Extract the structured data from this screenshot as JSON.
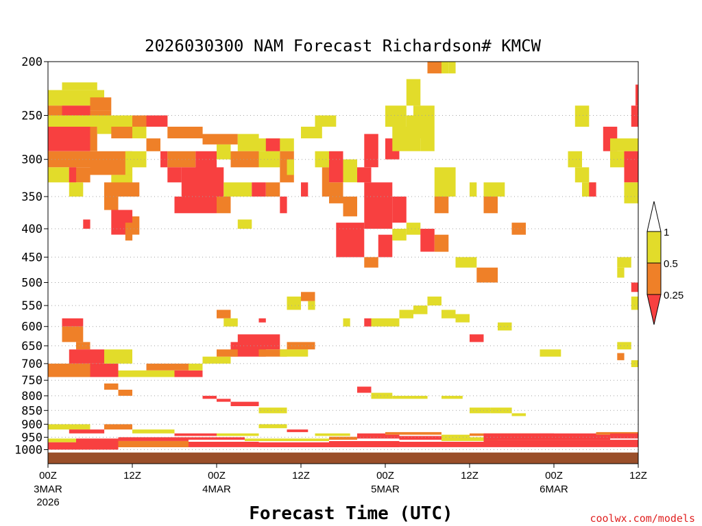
{
  "chart_data": {
    "type": "heatmap",
    "title": "2026030300 NAM Forecast Richardson# KMCW",
    "xlabel": "Forecast Time (UTC)",
    "ylabel": "",
    "credit": "coolwx.com/models",
    "x_range_hours": [
      0,
      84
    ],
    "y_range_hPa": [
      200,
      1060
    ],
    "y_scale": "log-pressure",
    "grid": "horizontal dotted",
    "y_ticks": [
      "200",
      "250",
      "300",
      "350",
      "400",
      "450",
      "500",
      "550",
      "600",
      "650",
      "700",
      "750",
      "800",
      "850",
      "900",
      "950",
      "1000"
    ],
    "y_tick_values": [
      200,
      250,
      300,
      350,
      400,
      450,
      500,
      550,
      600,
      650,
      700,
      750,
      800,
      850,
      900,
      950,
      1000
    ],
    "x_ticks": [
      {
        "hour": 0,
        "label": "00Z",
        "date": "3MAR",
        "year": "2026"
      },
      {
        "hour": 12,
        "label": "12Z",
        "date": "",
        "year": ""
      },
      {
        "hour": 24,
        "label": "00Z",
        "date": "4MAR",
        "year": ""
      },
      {
        "hour": 36,
        "label": "12Z",
        "date": "",
        "year": ""
      },
      {
        "hour": 48,
        "label": "00Z",
        "date": "5MAR",
        "year": ""
      },
      {
        "hour": 60,
        "label": "12Z",
        "date": "",
        "year": ""
      },
      {
        "hour": 72,
        "label": "00Z",
        "date": "6MAR",
        "year": ""
      },
      {
        "hour": 84,
        "label": "12Z",
        "date": "",
        "year": ""
      }
    ],
    "legend": {
      "placement": "right",
      "levels": [
        "1",
        "0.5",
        "0.25"
      ],
      "bins": [
        {
          "name": "0.5–1",
          "color": "#e2dc2a"
        },
        {
          "name": "0.25–0.5",
          "color": "#ef8028"
        },
        {
          "name": "<0.25",
          "color": "#f84040"
        }
      ]
    },
    "colors": {
      "c1": "#e2dc2a",
      "c2": "#ef8028",
      "c3": "#f84040",
      "ground": "#9a4f2a",
      "grid": "#a0a0a0"
    },
    "ground_level_hPa": 1012,
    "cells_format": "[hour_start, hour_end, p_top_hPa, p_bottom_hPa, category]",
    "cells": [
      [
        2,
        7,
        218,
        225,
        1
      ],
      [
        0,
        8,
        225,
        240,
        1
      ],
      [
        6,
        9,
        232,
        245,
        2
      ],
      [
        0,
        2,
        240,
        262,
        2
      ],
      [
        2,
        6,
        240,
        250,
        3
      ],
      [
        6,
        9,
        245,
        262,
        2
      ],
      [
        0,
        12,
        250,
        262,
        1
      ],
      [
        0,
        6,
        262,
        290,
        3
      ],
      [
        6,
        7,
        262,
        290,
        2
      ],
      [
        7,
        12,
        262,
        270,
        1
      ],
      [
        9,
        12,
        262,
        275,
        2
      ],
      [
        12,
        17,
        250,
        262,
        2
      ],
      [
        12,
        14,
        262,
        275,
        1
      ],
      [
        14,
        17,
        250,
        262,
        3
      ],
      [
        17,
        22,
        262,
        275,
        2
      ],
      [
        22,
        27,
        270,
        282,
        2
      ],
      [
        27,
        30,
        270,
        290,
        1
      ],
      [
        30,
        35,
        275,
        290,
        1
      ],
      [
        31,
        33,
        275,
        290,
        3
      ],
      [
        36,
        39,
        262,
        275,
        1
      ],
      [
        38,
        41,
        250,
        262,
        1
      ],
      [
        0,
        6,
        290,
        310,
        2
      ],
      [
        0,
        3,
        310,
        330,
        1
      ],
      [
        3,
        6,
        310,
        330,
        2
      ],
      [
        6,
        12,
        290,
        320,
        2
      ],
      [
        11,
        12,
        290,
        320,
        1
      ],
      [
        9,
        12,
        320,
        350,
        1
      ],
      [
        12,
        14,
        290,
        310,
        1
      ],
      [
        14,
        16,
        275,
        290,
        2
      ],
      [
        16,
        17,
        290,
        310,
        3
      ],
      [
        17,
        21,
        290,
        310,
        2
      ],
      [
        21,
        24,
        290,
        330,
        3
      ],
      [
        24,
        26,
        282,
        300,
        1
      ],
      [
        26,
        30,
        290,
        310,
        2
      ],
      [
        30,
        33,
        290,
        310,
        1
      ],
      [
        33,
        35,
        290,
        330,
        2
      ],
      [
        34,
        35,
        300,
        320,
        1
      ],
      [
        3,
        4,
        310,
        330,
        3
      ],
      [
        3,
        5,
        330,
        350,
        1
      ],
      [
        8,
        10,
        330,
        370,
        2
      ],
      [
        10,
        13,
        330,
        350,
        2
      ],
      [
        17,
        19,
        310,
        330,
        3
      ],
      [
        19,
        25,
        310,
        350,
        3
      ],
      [
        25,
        29,
        330,
        350,
        1
      ],
      [
        29,
        31,
        330,
        350,
        3
      ],
      [
        31,
        33,
        330,
        350,
        2
      ],
      [
        9,
        12,
        370,
        410,
        3
      ],
      [
        11,
        12,
        390,
        420,
        2
      ],
      [
        12,
        13,
        380,
        410,
        2
      ],
      [
        5,
        6,
        385,
        400,
        3
      ],
      [
        18,
        24,
        350,
        375,
        3
      ],
      [
        24,
        26,
        350,
        375,
        2
      ],
      [
        27,
        29,
        385,
        400,
        1
      ],
      [
        33,
        34,
        350,
        375,
        3
      ],
      [
        36,
        37,
        330,
        350,
        3
      ],
      [
        38,
        40,
        290,
        310,
        1
      ],
      [
        39,
        40,
        310,
        350,
        2
      ],
      [
        40,
        42,
        290,
        330,
        3
      ],
      [
        40,
        42,
        330,
        360,
        2
      ],
      [
        42,
        44,
        300,
        330,
        1
      ],
      [
        42,
        44,
        350,
        380,
        2
      ],
      [
        41,
        45,
        390,
        450,
        3
      ],
      [
        44,
        46,
        310,
        330,
        3
      ],
      [
        45,
        49,
        330,
        400,
        3
      ],
      [
        45,
        47,
        270,
        310,
        3
      ],
      [
        47,
        49,
        410,
        450,
        3
      ],
      [
        49,
        51,
        350,
        390,
        3
      ],
      [
        45,
        47,
        450,
        470,
        2
      ],
      [
        49,
        51,
        400,
        420,
        1
      ],
      [
        51,
        53,
        390,
        410,
        1
      ],
      [
        53,
        55,
        400,
        440,
        3
      ],
      [
        55,
        57,
        410,
        440,
        2
      ],
      [
        48,
        50,
        275,
        300,
        3
      ],
      [
        49,
        53,
        262,
        290,
        1
      ],
      [
        48,
        51,
        240,
        262,
        1
      ],
      [
        51,
        54,
        250,
        275,
        1
      ],
      [
        52,
        55,
        240,
        262,
        1
      ],
      [
        53,
        55,
        262,
        290,
        1
      ],
      [
        55,
        57,
        350,
        375,
        2
      ],
      [
        51,
        53,
        215,
        240,
        1
      ],
      [
        55,
        58,
        310,
        350,
        1
      ],
      [
        54,
        56,
        200,
        210,
        2
      ],
      [
        56,
        57,
        200,
        210,
        1
      ],
      [
        57,
        58,
        200,
        210,
        1
      ],
      [
        60,
        61,
        330,
        350,
        1
      ],
      [
        62,
        65,
        330,
        350,
        1
      ],
      [
        58,
        61,
        450,
        470,
        1
      ],
      [
        61,
        64,
        470,
        500,
        2
      ],
      [
        62,
        64,
        350,
        375,
        2
      ],
      [
        66,
        68,
        390,
        410,
        2
      ],
      [
        80,
        82,
        290,
        310,
        1
      ],
      [
        79,
        81,
        262,
        290,
        3
      ],
      [
        80,
        84,
        275,
        290,
        1
      ],
      [
        82,
        84,
        290,
        330,
        3
      ],
      [
        83,
        84,
        240,
        262,
        3
      ],
      [
        84,
        84,
        220,
        240,
        3
      ],
      [
        82,
        84,
        330,
        360,
        1
      ],
      [
        76,
        78,
        330,
        350,
        1
      ],
      [
        77,
        78,
        330,
        350,
        3
      ],
      [
        75,
        77,
        310,
        330,
        1
      ],
      [
        74,
        76,
        290,
        310,
        1
      ],
      [
        75,
        77,
        240,
        262,
        1
      ],
      [
        81,
        83,
        450,
        470,
        1
      ],
      [
        2,
        5,
        580,
        600,
        3
      ],
      [
        2,
        5,
        600,
        640,
        2
      ],
      [
        4,
        6,
        640,
        660,
        2
      ],
      [
        3,
        8,
        660,
        700,
        3
      ],
      [
        0,
        6,
        700,
        740,
        2
      ],
      [
        6,
        10,
        700,
        740,
        3
      ],
      [
        8,
        12,
        660,
        700,
        1
      ],
      [
        10,
        14,
        720,
        740,
        1
      ],
      [
        12,
        18,
        720,
        740,
        1
      ],
      [
        14,
        20,
        700,
        720,
        2
      ],
      [
        18,
        22,
        720,
        740,
        3
      ],
      [
        20,
        22,
        700,
        720,
        1
      ],
      [
        22,
        26,
        680,
        700,
        1
      ],
      [
        26,
        31,
        640,
        680,
        3
      ],
      [
        24,
        27,
        660,
        680,
        2
      ],
      [
        27,
        33,
        620,
        660,
        3
      ],
      [
        30,
        34,
        660,
        680,
        2
      ],
      [
        33,
        37,
        660,
        680,
        1
      ],
      [
        34,
        38,
        640,
        660,
        2
      ],
      [
        24,
        26,
        560,
        580,
        2
      ],
      [
        25,
        27,
        580,
        600,
        1
      ],
      [
        30,
        31,
        580,
        590,
        3
      ],
      [
        34,
        36,
        530,
        560,
        1
      ],
      [
        36,
        38,
        520,
        540,
        2
      ],
      [
        37,
        38,
        540,
        560,
        1
      ],
      [
        42,
        43,
        580,
        600,
        1
      ],
      [
        45,
        46,
        580,
        600,
        3
      ],
      [
        46,
        50,
        580,
        600,
        1
      ],
      [
        50,
        52,
        560,
        580,
        1
      ],
      [
        52,
        54,
        550,
        570,
        1
      ],
      [
        54,
        56,
        530,
        550,
        1
      ],
      [
        56,
        58,
        560,
        580,
        1
      ],
      [
        58,
        60,
        570,
        590,
        1
      ],
      [
        60,
        62,
        620,
        640,
        3
      ],
      [
        64,
        66,
        590,
        610,
        1
      ],
      [
        70,
        73,
        660,
        680,
        1
      ],
      [
        81,
        83,
        640,
        660,
        1
      ],
      [
        81,
        82,
        670,
        690,
        2
      ],
      [
        83,
        84,
        690,
        710,
        1
      ],
      [
        83,
        84,
        530,
        560,
        1
      ],
      [
        83,
        84,
        500,
        520,
        3
      ],
      [
        81,
        82,
        470,
        490,
        1
      ],
      [
        8,
        10,
        760,
        780,
        2
      ],
      [
        10,
        12,
        780,
        800,
        2
      ],
      [
        22,
        24,
        800,
        810,
        3
      ],
      [
        24,
        26,
        810,
        820,
        3
      ],
      [
        26,
        30,
        820,
        835,
        3
      ],
      [
        30,
        34,
        840,
        860,
        1
      ],
      [
        44,
        46,
        770,
        790,
        3
      ],
      [
        46,
        49,
        790,
        810,
        1
      ],
      [
        49,
        54,
        800,
        810,
        1
      ],
      [
        56,
        59,
        800,
        810,
        1
      ],
      [
        60,
        63,
        840,
        860,
        1
      ],
      [
        63,
        66,
        840,
        860,
        1
      ],
      [
        66,
        68,
        860,
        870,
        1
      ],
      [
        0,
        6,
        900,
        920,
        1
      ],
      [
        3,
        8,
        920,
        935,
        3
      ],
      [
        8,
        12,
        900,
        920,
        2
      ],
      [
        12,
        18,
        920,
        935,
        1
      ],
      [
        18,
        24,
        935,
        945,
        3
      ],
      [
        24,
        30,
        935,
        945,
        1
      ],
      [
        30,
        34,
        900,
        915,
        1
      ],
      [
        34,
        37,
        920,
        930,
        3
      ],
      [
        38,
        43,
        935,
        945,
        1
      ],
      [
        44,
        48,
        935,
        945,
        3
      ],
      [
        48,
        56,
        930,
        940,
        2
      ],
      [
        56,
        60,
        940,
        950,
        1
      ],
      [
        60,
        70,
        935,
        945,
        2
      ],
      [
        70,
        78,
        935,
        945,
        3
      ],
      [
        78,
        84,
        930,
        940,
        2
      ],
      [
        0,
        4,
        955,
        970,
        1
      ],
      [
        4,
        10,
        955,
        975,
        3
      ],
      [
        10,
        20,
        950,
        965,
        3
      ],
      [
        20,
        28,
        950,
        960,
        3
      ],
      [
        28,
        40,
        955,
        965,
        1
      ],
      [
        40,
        44,
        948,
        960,
        2
      ],
      [
        44,
        50,
        940,
        955,
        3
      ],
      [
        50,
        56,
        945,
        960,
        3
      ],
      [
        56,
        64,
        950,
        965,
        1
      ],
      [
        62,
        72,
        935,
        960,
        3
      ],
      [
        72,
        80,
        940,
        960,
        3
      ],
      [
        80,
        84,
        935,
        955,
        3
      ],
      [
        0,
        10,
        970,
        1000,
        3
      ],
      [
        10,
        20,
        965,
        990,
        2
      ],
      [
        20,
        30,
        968,
        990,
        3
      ],
      [
        30,
        40,
        970,
        990,
        3
      ],
      [
        40,
        50,
        965,
        990,
        3
      ],
      [
        50,
        62,
        968,
        990,
        3
      ],
      [
        62,
        84,
        960,
        990,
        3
      ]
    ]
  }
}
